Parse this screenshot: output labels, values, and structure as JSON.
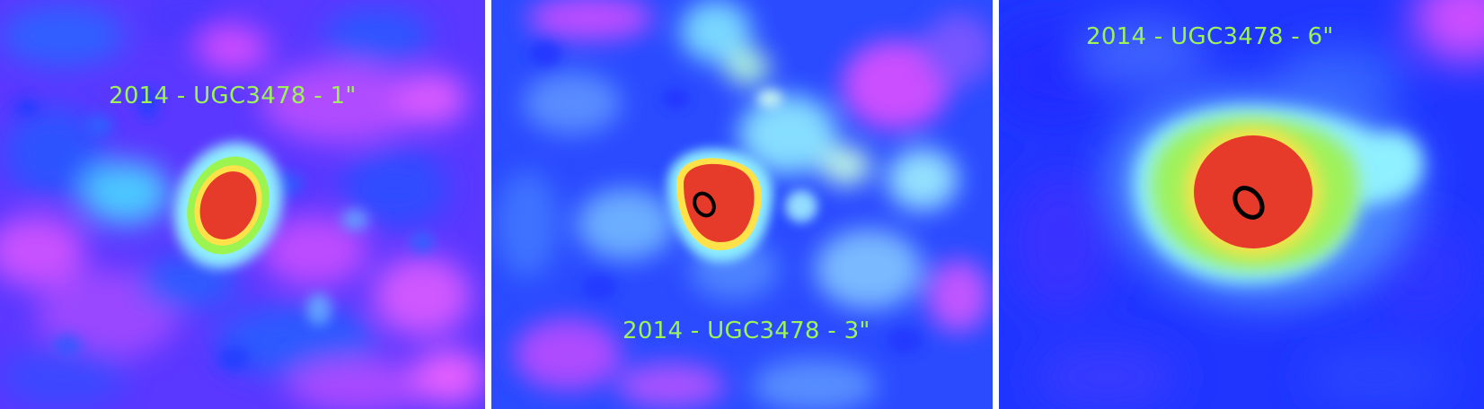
{
  "panels": [
    {
      "label": "2014 - UGC3478 - 1\"",
      "colormap": [
        "#3a2bff",
        "#2a55ff",
        "#b44dff",
        "#7ee8ff",
        "#98f24f",
        "#ffe14a",
        "#e63a2a"
      ]
    },
    {
      "label": "2014 - UGC3478 - 3\"",
      "colormap": [
        "#2034ff",
        "#4f8fff",
        "#8ad8ff",
        "#7ef3ff",
        "#ffe14a",
        "#e63a2a"
      ]
    },
    {
      "label": "2014 - UGC3478 - 6\"",
      "colormap": [
        "#1f2cff",
        "#3d6bff",
        "#7fe4ff",
        "#9cf86a",
        "#ffe14a",
        "#e63a2a"
      ]
    }
  ]
}
